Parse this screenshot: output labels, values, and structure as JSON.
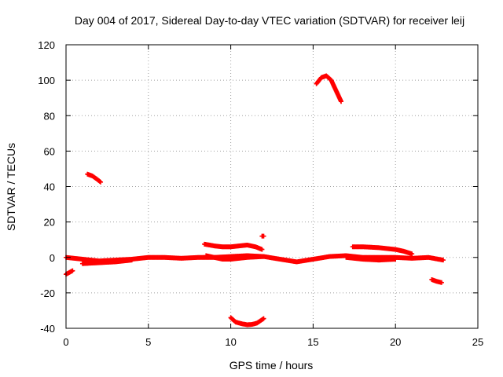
{
  "chart_data": {
    "type": "scatter",
    "title": "Day 004 of 2017, Sidereal Day-to-day VTEC variation (SDTVAR) for receiver leij",
    "xlabel": "GPS time / hours",
    "ylabel": "SDTVAR / TECUs",
    "xlim": [
      0,
      25
    ],
    "ylim": [
      -40,
      120
    ],
    "xticks": [
      0,
      5,
      10,
      15,
      20,
      25
    ],
    "yticks": [
      -40,
      -20,
      0,
      20,
      40,
      60,
      80,
      100,
      120
    ],
    "grid": true,
    "marker_color": "#ff0000",
    "segments": [
      {
        "x": [
          0.0,
          0.2,
          0.4
        ],
        "y": [
          -9.5,
          -8.5,
          -7.5
        ]
      },
      {
        "x": [
          1.3,
          1.6,
          1.9,
          2.1
        ],
        "y": [
          47,
          46,
          44,
          42.5
        ]
      },
      {
        "x": [
          0.0,
          1.0,
          2.0,
          3.0,
          4.0,
          5.0,
          6.0,
          7.0,
          8.0,
          9.0,
          10.0,
          11.0,
          12.0,
          13.0,
          14.0,
          15.0,
          16.0,
          17.0,
          18.0,
          19.0,
          20.0,
          21.0,
          22.0,
          22.9
        ],
        "y": [
          0,
          -1,
          -2,
          -1.5,
          -1,
          0,
          0,
          -0.5,
          0,
          0,
          0.5,
          1,
          0.5,
          -1,
          -2.5,
          -1,
          0.5,
          1,
          0,
          0,
          0,
          -0.5,
          0,
          -1.5
        ]
      },
      {
        "x": [
          1.0,
          2.0,
          3.0,
          4.0
        ],
        "y": [
          -3.5,
          -3,
          -2.5,
          -1.5
        ]
      },
      {
        "x": [
          8.4,
          9.0,
          9.5,
          10.0,
          10.5,
          11.0,
          11.5,
          11.9
        ],
        "y": [
          7.5,
          6.5,
          6,
          6,
          6.5,
          7,
          6,
          4.5
        ]
      },
      {
        "x": [
          8.5,
          9.0,
          9.5,
          10.0,
          11.0,
          12.0
        ],
        "y": [
          1,
          0,
          -1,
          -1,
          0,
          0.5
        ]
      },
      {
        "x": [
          11.9,
          12.0
        ],
        "y": [
          12,
          12
        ]
      },
      {
        "x": [
          10.0,
          10.3,
          10.7,
          11.0,
          11.3,
          11.6,
          12.0
        ],
        "y": [
          -34,
          -36.5,
          -37.5,
          -38,
          -37.8,
          -37,
          -34.5
        ]
      },
      {
        "x": [
          15.2,
          15.5,
          15.8,
          16.1,
          16.4,
          16.7
        ],
        "y": [
          98,
          101.5,
          102.5,
          100,
          94,
          88
        ]
      },
      {
        "x": [
          17.4,
          18.0,
          19.0,
          20.0,
          20.5,
          21.0
        ],
        "y": [
          6,
          6,
          5.5,
          4.5,
          3.5,
          2
        ]
      },
      {
        "x": [
          17.0,
          18.0,
          19.0,
          20.0
        ],
        "y": [
          0,
          -1,
          -1.5,
          -1
        ]
      },
      {
        "x": [
          22.2,
          22.5,
          22.8
        ],
        "y": [
          -12.5,
          -13.5,
          -14.2
        ]
      }
    ]
  }
}
